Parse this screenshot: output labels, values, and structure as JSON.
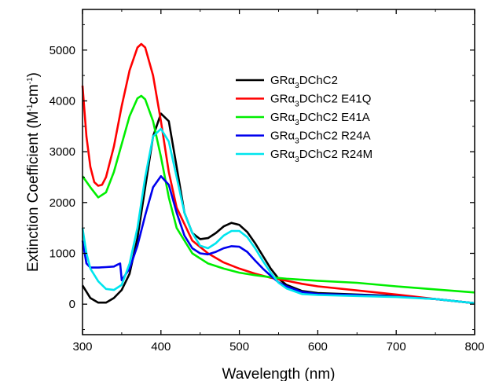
{
  "chart_data": {
    "type": "line",
    "title": "",
    "xlabel": "Wavelength (nm)",
    "ylabel": {
      "prefix": "Extinction Coefficient (M",
      "sup1": "-1",
      "mid": "cm",
      "sup2": "-1",
      "suffix": ")"
    },
    "xlim": [
      300,
      800
    ],
    "ylim": [
      -600,
      5800
    ],
    "xticks": [
      300,
      400,
      500,
      600,
      700,
      800
    ],
    "yticks": [
      0,
      1000,
      2000,
      3000,
      4000,
      5000
    ],
    "grid": false,
    "legend_position": "upper-right",
    "series": [
      {
        "name": {
          "prefix": "GR",
          "greek": "α",
          "sub": "3",
          "suffix": "DChC2"
        },
        "color": "#000000",
        "x": [
          300,
          310,
          320,
          330,
          340,
          350,
          360,
          370,
          380,
          390,
          400,
          410,
          420,
          430,
          440,
          450,
          460,
          470,
          480,
          490,
          500,
          510,
          520,
          530,
          540,
          550,
          560,
          580,
          600,
          650,
          700,
          750,
          800
        ],
        "y": [
          370,
          120,
          30,
          30,
          120,
          280,
          600,
          1300,
          2300,
          3300,
          3750,
          3600,
          2700,
          1800,
          1400,
          1280,
          1300,
          1400,
          1530,
          1600,
          1560,
          1420,
          1200,
          950,
          700,
          500,
          380,
          260,
          220,
          190,
          160,
          100,
          20
        ]
      },
      {
        "name": {
          "prefix": "GR",
          "greek": "α",
          "sub": "3",
          "suffix": "DChC2 E41Q"
        },
        "color": "#ff0000",
        "x": [
          300,
          305,
          310,
          315,
          320,
          325,
          330,
          340,
          350,
          360,
          370,
          375,
          380,
          390,
          400,
          410,
          420,
          440,
          460,
          480,
          500,
          520,
          540,
          560,
          580,
          600,
          650,
          700,
          750,
          800
        ],
        "y": [
          4300,
          3300,
          2700,
          2400,
          2330,
          2350,
          2500,
          3100,
          3900,
          4600,
          5050,
          5120,
          5050,
          4500,
          3600,
          2600,
          1900,
          1250,
          1000,
          820,
          700,
          600,
          520,
          460,
          400,
          350,
          270,
          190,
          100,
          20
        ]
      },
      {
        "name": {
          "prefix": "GR",
          "greek": "α",
          "sub": "3",
          "suffix": "DChC2 E41A"
        },
        "color": "#00ee00",
        "x": [
          300,
          310,
          320,
          330,
          340,
          350,
          360,
          370,
          375,
          380,
          390,
          400,
          410,
          420,
          440,
          460,
          480,
          500,
          520,
          540,
          560,
          580,
          600,
          650,
          700,
          750,
          800
        ],
        "y": [
          2520,
          2300,
          2100,
          2200,
          2600,
          3150,
          3700,
          4050,
          4100,
          4030,
          3600,
          2900,
          2100,
          1500,
          1000,
          800,
          700,
          620,
          570,
          530,
          500,
          480,
          460,
          420,
          350,
          290,
          230
        ]
      },
      {
        "name": {
          "prefix": "GR",
          "greek": "α",
          "sub": "3",
          "suffix": "DChC2 R24A"
        },
        "color": "#0000ee",
        "x": [
          300,
          305,
          310,
          320,
          330,
          340,
          345,
          348,
          350,
          360,
          370,
          380,
          390,
          400,
          410,
          420,
          430,
          440,
          450,
          460,
          470,
          480,
          490,
          500,
          510,
          520,
          530,
          540,
          550,
          560,
          580,
          600,
          650,
          700,
          750,
          800
        ],
        "y": [
          1250,
          800,
          720,
          720,
          730,
          740,
          780,
          800,
          470,
          700,
          1150,
          1750,
          2300,
          2520,
          2350,
          1800,
          1350,
          1100,
          1000,
          980,
          1030,
          1100,
          1140,
          1130,
          1030,
          860,
          700,
          560,
          430,
          350,
          240,
          200,
          180,
          150,
          100,
          20
        ]
      },
      {
        "name": {
          "prefix": "GR",
          "greek": "α",
          "sub": "3",
          "suffix": "DChC2 R24M"
        },
        "color": "#00e5ee",
        "x": [
          300,
          305,
          310,
          320,
          330,
          340,
          350,
          360,
          370,
          380,
          390,
          400,
          410,
          420,
          430,
          440,
          450,
          460,
          470,
          480,
          490,
          500,
          510,
          520,
          530,
          540,
          550,
          560,
          580,
          600,
          650,
          700,
          750,
          800
        ],
        "y": [
          1500,
          1000,
          700,
          450,
          300,
          280,
          380,
          800,
          1500,
          2500,
          3300,
          3450,
          3200,
          2500,
          1800,
          1400,
          1150,
          1100,
          1200,
          1350,
          1440,
          1440,
          1320,
          1100,
          850,
          620,
          420,
          310,
          200,
          180,
          160,
          140,
          100,
          20
        ]
      }
    ]
  }
}
